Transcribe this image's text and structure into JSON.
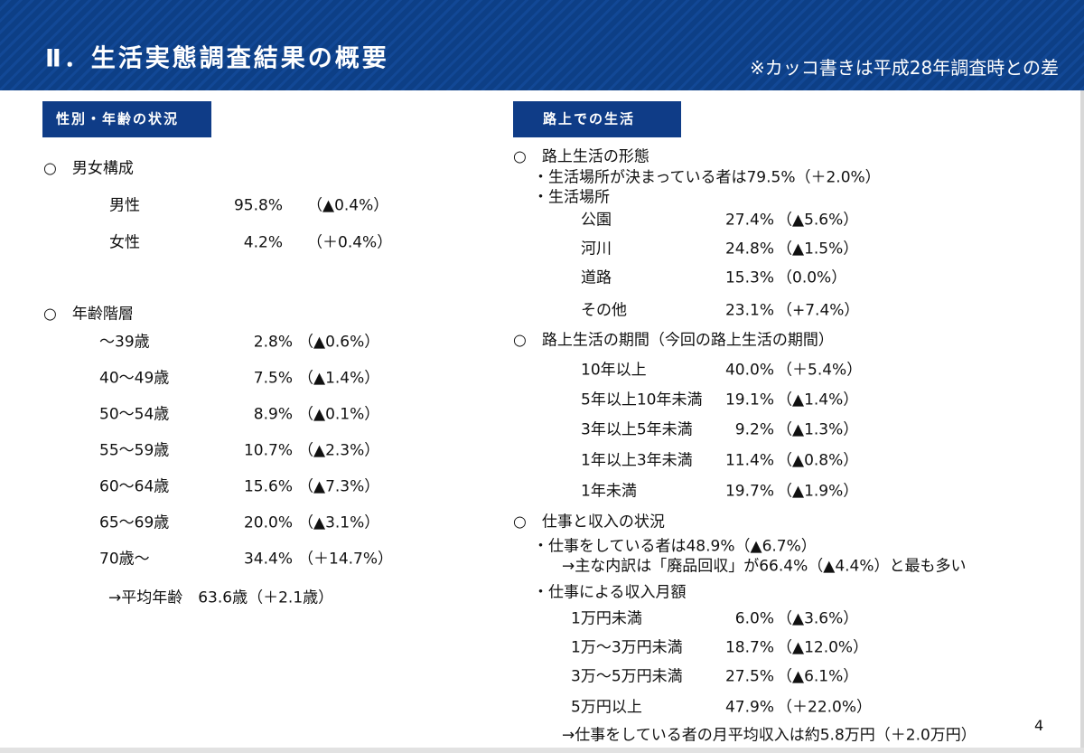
{
  "header": {
    "title": "Ⅱ．生活実態調査結果の概要",
    "note": "※カッコ書きは平成28年調査時との差"
  },
  "left": {
    "heading": "性別・年齢の状況",
    "sex": {
      "label": "○　男女構成",
      "rows": [
        [
          "男性",
          "95.8%",
          "（▲0.4%）"
        ],
        [
          "女性",
          "4.2%",
          "（＋0.4%）"
        ]
      ]
    },
    "age": {
      "label": "○　年齢階層",
      "rows": [
        [
          "～39歳",
          "2.8%",
          "（▲0.6%）"
        ],
        [
          "40～49歳",
          "7.5%",
          "（▲1.4%）"
        ],
        [
          "50～54歳",
          "8.9%",
          "（▲0.1%）"
        ],
        [
          "55～59歳",
          "10.7%",
          "（▲2.3%）"
        ],
        [
          "60～64歳",
          "15.6%",
          "（▲7.3%）"
        ],
        [
          "65～69歳",
          "20.0%",
          "（▲3.1%）"
        ],
        [
          "70歳～",
          "34.4%",
          "（＋14.7%）"
        ]
      ],
      "average": "→平均年齢　63.6歳（＋2.1歳）"
    }
  },
  "right": {
    "heading": "路上での生活",
    "form": {
      "label": "○　路上生活の形態",
      "lines": [
        "・生活場所が決まっている者は79.5%（＋2.0%）",
        "・生活場所"
      ],
      "rows": [
        [
          "公園",
          "27.4%",
          "（▲5.6%）"
        ],
        [
          "河川",
          "24.8%",
          "（▲1.5%）"
        ],
        [
          "道路",
          "15.3%",
          "（0.0%）"
        ],
        [
          "その他",
          "23.1%",
          "（+7.4%）"
        ]
      ]
    },
    "period": {
      "label": "○　路上生活の期間（今回の路上生活の期間）",
      "rows": [
        [
          "10年以上",
          "40.0%",
          "（＋5.4%）"
        ],
        [
          "5年以上10年未満",
          "19.1%",
          "（▲1.4%）"
        ],
        [
          "3年以上5年未満",
          "9.2%",
          "（▲1.3%）"
        ],
        [
          "1年以上3年未満",
          "11.4%",
          "（▲0.8%）"
        ],
        [
          "1年未満",
          "19.7%",
          "（▲1.9%）"
        ]
      ]
    },
    "work": {
      "label": "○　仕事と収入の状況",
      "lines": [
        "・仕事をしている者は48.9%（▲6.7%）",
        "→主な内訳は「廃品回収」が66.4%（▲4.4%）と最も多い",
        "・仕事による収入月額"
      ],
      "rows": [
        [
          "1万円未満",
          "6.0%",
          "（▲3.6%）"
        ],
        [
          "1万～3万円未満",
          "18.7%",
          "（▲12.0%）"
        ],
        [
          "3万～5万円未満",
          "27.5%",
          "（▲6.1%）"
        ],
        [
          "5万円以上",
          "47.9%",
          "（＋22.0%）"
        ]
      ],
      "footer": "→仕事をしている者の月平均収入は約5.8万円（＋2.0万円）"
    }
  },
  "page_number": "4"
}
